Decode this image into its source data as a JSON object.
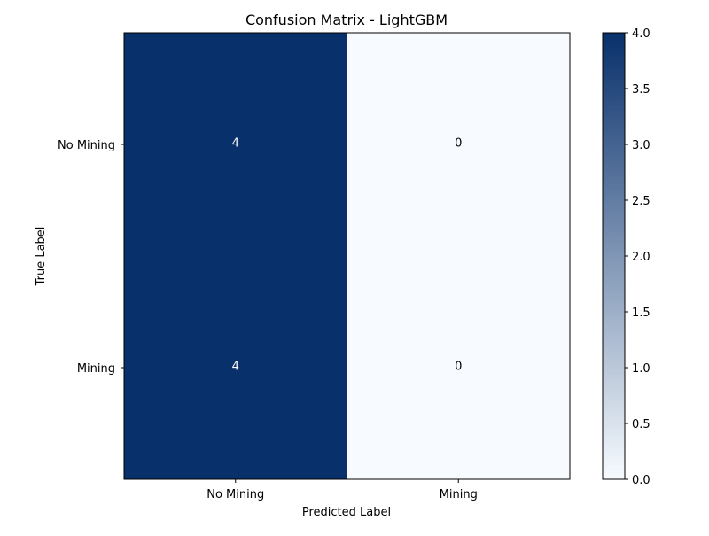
{
  "chart_data": {
    "type": "heatmap",
    "title": "Confusion Matrix - LightGBM",
    "xlabel": "Predicted Label",
    "ylabel": "True Label",
    "x_categories": [
      "No Mining",
      "Mining"
    ],
    "y_categories": [
      "No Mining",
      "Mining"
    ],
    "values": [
      [
        4,
        0
      ],
      [
        4,
        0
      ]
    ],
    "colormap": "Blues",
    "color_min": "#f7fbff",
    "color_max": "#08306b",
    "text_color_dark_cell": "#ffffff",
    "text_color_light_cell": "#000000",
    "vmin": 0,
    "vmax": 4,
    "colorbar": {
      "ticks": [
        0.0,
        0.5,
        1.0,
        1.5,
        2.0,
        2.5,
        3.0,
        3.5,
        4.0
      ],
      "tick_labels": [
        "0.0",
        "0.5",
        "1.0",
        "1.5",
        "2.0",
        "2.5",
        "3.0",
        "3.5",
        "4.0"
      ]
    },
    "cell_labels": [
      [
        "4",
        "0"
      ],
      [
        "4",
        "0"
      ]
    ]
  }
}
